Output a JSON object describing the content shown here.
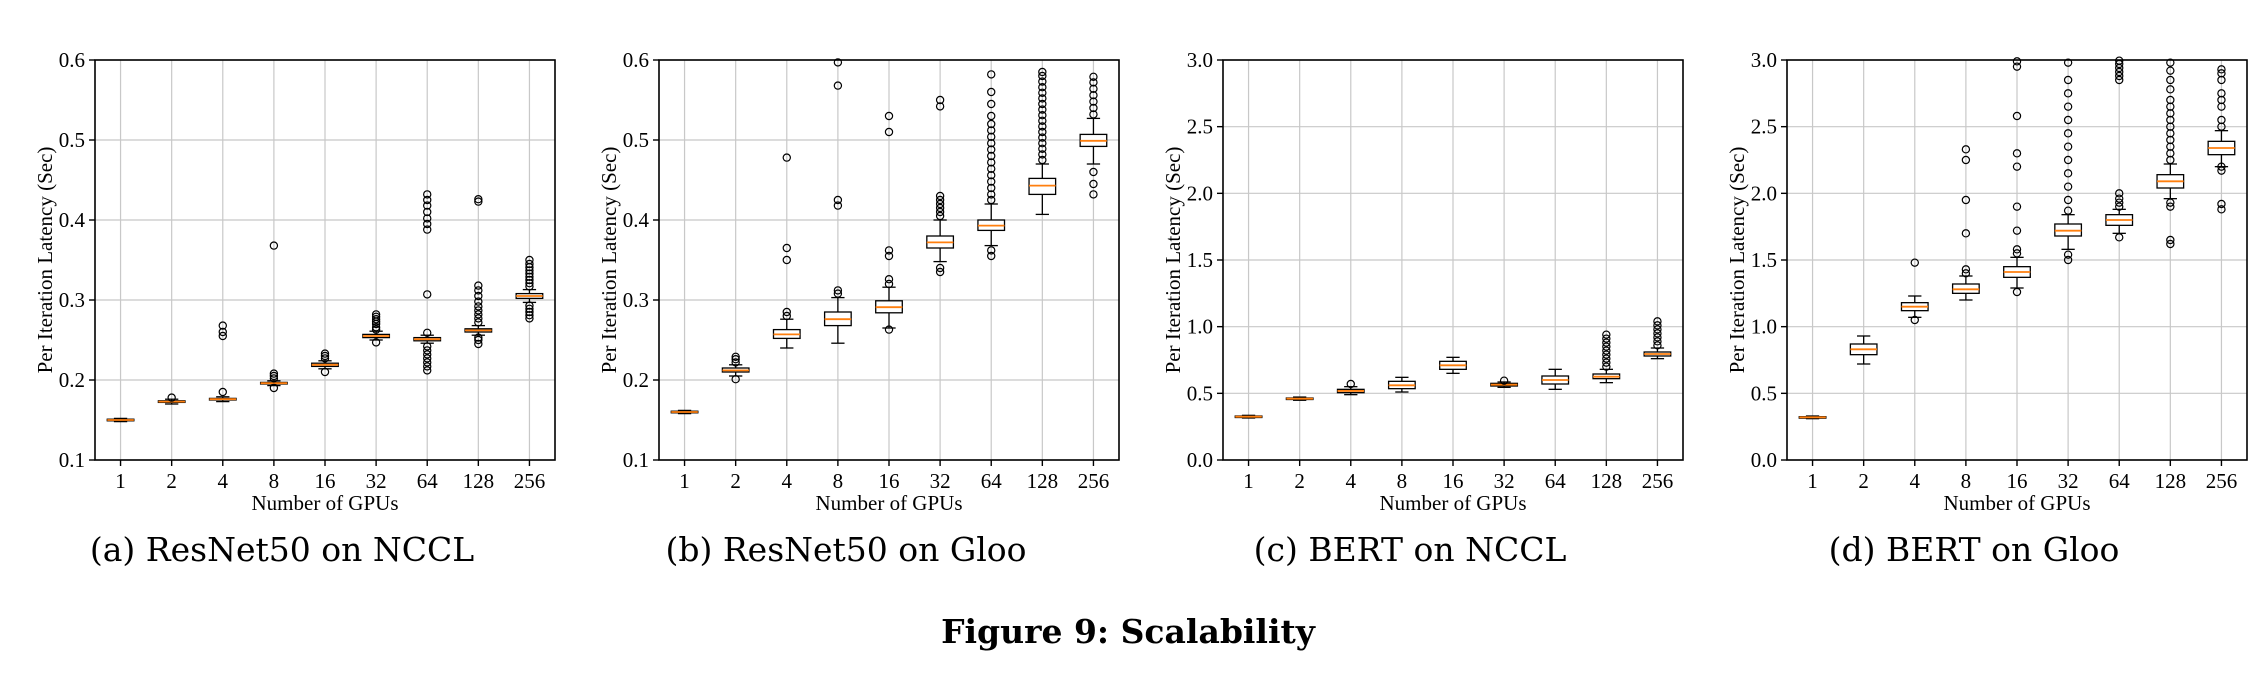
{
  "figure_caption": "Figure 9: Scalability",
  "chart_data": [
    {
      "type": "box",
      "caption": "(a) ResNet50 on NCCL",
      "xlabel": "Number of GPUs",
      "ylabel": "Per Iteration Latency (Sec)",
      "categories": [
        "1",
        "2",
        "4",
        "8",
        "16",
        "32",
        "64",
        "128",
        "256"
      ],
      "ylim": [
        0.1,
        0.6
      ],
      "yticks": [
        "0.1",
        "0.2",
        "0.3",
        "0.4",
        "0.5",
        "0.6"
      ],
      "grid": true,
      "boxes": [
        {
          "q1": 0.149,
          "median": 0.15,
          "q3": 0.151,
          "whisker_low": 0.148,
          "whisker_high": 0.152,
          "outliers": []
        },
        {
          "q1": 0.172,
          "median": 0.173,
          "q3": 0.174,
          "whisker_low": 0.17,
          "whisker_high": 0.176,
          "outliers": [
            0.178
          ]
        },
        {
          "q1": 0.175,
          "median": 0.176,
          "q3": 0.177,
          "whisker_low": 0.173,
          "whisker_high": 0.179,
          "outliers": [
            0.185,
            0.255,
            0.26,
            0.268
          ]
        },
        {
          "q1": 0.195,
          "median": 0.196,
          "q3": 0.197,
          "whisker_low": 0.193,
          "whisker_high": 0.199,
          "outliers": [
            0.19,
            0.202,
            0.205,
            0.208,
            0.368
          ]
        },
        {
          "q1": 0.217,
          "median": 0.219,
          "q3": 0.221,
          "whisker_low": 0.214,
          "whisker_high": 0.224,
          "outliers": [
            0.21,
            0.227,
            0.23,
            0.233
          ]
        },
        {
          "q1": 0.253,
          "median": 0.255,
          "q3": 0.257,
          "whisker_low": 0.25,
          "whisker_high": 0.261,
          "outliers": [
            0.247,
            0.263,
            0.266,
            0.27,
            0.273,
            0.276,
            0.279,
            0.282
          ]
        },
        {
          "q1": 0.249,
          "median": 0.251,
          "q3": 0.253,
          "whisker_low": 0.246,
          "whisker_high": 0.256,
          "outliers": [
            0.212,
            0.217,
            0.222,
            0.227,
            0.232,
            0.237,
            0.242,
            0.259,
            0.307,
            0.388,
            0.395,
            0.402,
            0.41,
            0.418,
            0.425,
            0.432
          ]
        },
        {
          "q1": 0.26,
          "median": 0.262,
          "q3": 0.264,
          "whisker_low": 0.256,
          "whisker_high": 0.268,
          "outliers": [
            0.245,
            0.25,
            0.253,
            0.272,
            0.277,
            0.282,
            0.287,
            0.292,
            0.298,
            0.305,
            0.312,
            0.318,
            0.423,
            0.426
          ]
        },
        {
          "q1": 0.302,
          "median": 0.305,
          "q3": 0.308,
          "whisker_low": 0.297,
          "whisker_high": 0.313,
          "outliers": [
            0.277,
            0.281,
            0.285,
            0.289,
            0.293,
            0.317,
            0.321,
            0.325,
            0.329,
            0.333,
            0.337,
            0.341,
            0.345,
            0.35
          ]
        }
      ]
    },
    {
      "type": "box",
      "caption": "(b) ResNet50 on Gloo",
      "xlabel": "Number of GPUs",
      "ylabel": "Per Iteration Latency (Sec)",
      "categories": [
        "1",
        "2",
        "4",
        "8",
        "16",
        "32",
        "64",
        "128",
        "256"
      ],
      "ylim": [
        0.1,
        0.6
      ],
      "yticks": [
        "0.1",
        "0.2",
        "0.3",
        "0.4",
        "0.5",
        "0.6"
      ],
      "grid": true,
      "boxes": [
        {
          "q1": 0.159,
          "median": 0.16,
          "q3": 0.161,
          "whisker_low": 0.158,
          "whisker_high": 0.162,
          "outliers": []
        },
        {
          "q1": 0.21,
          "median": 0.212,
          "q3": 0.215,
          "whisker_low": 0.205,
          "whisker_high": 0.219,
          "outliers": [
            0.201,
            0.222,
            0.226,
            0.229
          ]
        },
        {
          "q1": 0.252,
          "median": 0.257,
          "q3": 0.263,
          "whisker_low": 0.24,
          "whisker_high": 0.276,
          "outliers": [
            0.28,
            0.285,
            0.35,
            0.365,
            0.478
          ]
        },
        {
          "q1": 0.268,
          "median": 0.276,
          "q3": 0.285,
          "whisker_low": 0.246,
          "whisker_high": 0.303,
          "outliers": [
            0.308,
            0.312,
            0.418,
            0.425,
            0.568,
            0.597
          ]
        },
        {
          "q1": 0.284,
          "median": 0.291,
          "q3": 0.299,
          "whisker_low": 0.265,
          "whisker_high": 0.316,
          "outliers": [
            0.263,
            0.32,
            0.326,
            0.355,
            0.362,
            0.51,
            0.53
          ]
        },
        {
          "q1": 0.365,
          "median": 0.372,
          "q3": 0.38,
          "whisker_low": 0.348,
          "whisker_high": 0.4,
          "outliers": [
            0.335,
            0.34,
            0.405,
            0.41,
            0.415,
            0.42,
            0.425,
            0.43,
            0.542,
            0.55
          ]
        },
        {
          "q1": 0.387,
          "median": 0.393,
          "q3": 0.4,
          "whisker_low": 0.368,
          "whisker_high": 0.42,
          "outliers": [
            0.355,
            0.362,
            0.425,
            0.432,
            0.44,
            0.448,
            0.456,
            0.464,
            0.472,
            0.48,
            0.488,
            0.496,
            0.504,
            0.512,
            0.52,
            0.53,
            0.545,
            0.56,
            0.582
          ]
        },
        {
          "q1": 0.432,
          "median": 0.443,
          "q3": 0.452,
          "whisker_low": 0.407,
          "whisker_high": 0.47,
          "outliers": [
            0.475,
            0.482,
            0.489,
            0.496,
            0.503,
            0.51,
            0.517,
            0.524,
            0.531,
            0.538,
            0.545,
            0.552,
            0.559,
            0.566,
            0.573,
            0.58,
            0.585
          ]
        },
        {
          "q1": 0.492,
          "median": 0.499,
          "q3": 0.507,
          "whisker_low": 0.47,
          "whisker_high": 0.527,
          "outliers": [
            0.432,
            0.445,
            0.46,
            0.532,
            0.54,
            0.548,
            0.556,
            0.564,
            0.572,
            0.579
          ]
        }
      ]
    },
    {
      "type": "box",
      "caption": "(c) BERT on NCCL",
      "xlabel": "Number of GPUs",
      "ylabel": "Per Iteration Latency (Sec)",
      "categories": [
        "1",
        "2",
        "4",
        "8",
        "16",
        "32",
        "64",
        "128",
        "256"
      ],
      "ylim": [
        0.0,
        3.0
      ],
      "yticks": [
        "0.0",
        "0.5",
        "1.0",
        "1.5",
        "2.0",
        "2.5",
        "3.0"
      ],
      "grid": true,
      "boxes": [
        {
          "q1": 0.32,
          "median": 0.325,
          "q3": 0.33,
          "whisker_low": 0.315,
          "whisker_high": 0.335,
          "outliers": []
        },
        {
          "q1": 0.455,
          "median": 0.46,
          "q3": 0.465,
          "whisker_low": 0.448,
          "whisker_high": 0.472,
          "outliers": []
        },
        {
          "q1": 0.505,
          "median": 0.518,
          "q3": 0.53,
          "whisker_low": 0.49,
          "whisker_high": 0.55,
          "outliers": [
            0.57
          ]
        },
        {
          "q1": 0.535,
          "median": 0.56,
          "q3": 0.59,
          "whisker_low": 0.51,
          "whisker_high": 0.62,
          "outliers": []
        },
        {
          "q1": 0.68,
          "median": 0.71,
          "q3": 0.74,
          "whisker_low": 0.65,
          "whisker_high": 0.77,
          "outliers": []
        },
        {
          "q1": 0.555,
          "median": 0.565,
          "q3": 0.575,
          "whisker_low": 0.545,
          "whisker_high": 0.585,
          "outliers": [
            0.595
          ]
        },
        {
          "q1": 0.57,
          "median": 0.6,
          "q3": 0.63,
          "whisker_low": 0.53,
          "whisker_high": 0.68,
          "outliers": []
        },
        {
          "q1": 0.61,
          "median": 0.625,
          "q3": 0.645,
          "whisker_low": 0.58,
          "whisker_high": 0.68,
          "outliers": [
            0.7,
            0.73,
            0.76,
            0.79,
            0.82,
            0.85,
            0.88,
            0.91,
            0.94
          ]
        },
        {
          "q1": 0.78,
          "median": 0.795,
          "q3": 0.81,
          "whisker_low": 0.76,
          "whisker_high": 0.84,
          "outliers": [
            0.86,
            0.89,
            0.92,
            0.95,
            0.98,
            1.01,
            1.04
          ]
        }
      ]
    },
    {
      "type": "box",
      "caption": "(d) BERT on Gloo",
      "xlabel": "Number of GPUs",
      "ylabel": "Per Iteration Latency (Sec)",
      "categories": [
        "1",
        "2",
        "4",
        "8",
        "16",
        "32",
        "64",
        "128",
        "256"
      ],
      "ylim": [
        0.0,
        3.0
      ],
      "yticks": [
        "0.0",
        "0.5",
        "1.0",
        "1.5",
        "2.0",
        "2.5",
        "3.0"
      ],
      "grid": true,
      "boxes": [
        {
          "q1": 0.315,
          "median": 0.32,
          "q3": 0.325,
          "whisker_low": 0.31,
          "whisker_high": 0.33,
          "outliers": []
        },
        {
          "q1": 0.79,
          "median": 0.83,
          "q3": 0.87,
          "whisker_low": 0.72,
          "whisker_high": 0.93,
          "outliers": []
        },
        {
          "q1": 1.12,
          "median": 1.15,
          "q3": 1.18,
          "whisker_low": 1.07,
          "whisker_high": 1.23,
          "outliers": [
            1.05,
            1.48
          ]
        },
        {
          "q1": 1.25,
          "median": 1.28,
          "q3": 1.32,
          "whisker_low": 1.2,
          "whisker_high": 1.38,
          "outliers": [
            1.4,
            1.43,
            1.7,
            1.95,
            2.25,
            2.33
          ]
        },
        {
          "q1": 1.37,
          "median": 1.41,
          "q3": 1.45,
          "whisker_low": 1.29,
          "whisker_high": 1.52,
          "outliers": [
            1.26,
            1.55,
            1.58,
            1.72,
            1.9,
            2.2,
            2.3,
            2.58,
            2.95,
            2.99
          ]
        },
        {
          "q1": 1.68,
          "median": 1.72,
          "q3": 1.77,
          "whisker_low": 1.58,
          "whisker_high": 1.84,
          "outliers": [
            1.5,
            1.54,
            1.87,
            1.95,
            2.05,
            2.15,
            2.25,
            2.35,
            2.45,
            2.55,
            2.65,
            2.75,
            2.85,
            2.98
          ]
        },
        {
          "q1": 1.76,
          "median": 1.8,
          "q3": 1.84,
          "whisker_low": 1.7,
          "whisker_high": 1.88,
          "outliers": [
            1.67,
            1.9,
            1.93,
            1.96,
            2.0,
            2.85,
            2.88,
            2.91,
            2.94,
            2.97,
            2.995
          ]
        },
        {
          "q1": 2.04,
          "median": 2.09,
          "q3": 2.14,
          "whisker_low": 1.96,
          "whisker_high": 2.22,
          "outliers": [
            1.62,
            1.65,
            1.9,
            1.93,
            2.25,
            2.3,
            2.35,
            2.4,
            2.45,
            2.5,
            2.55,
            2.6,
            2.65,
            2.7,
            2.78,
            2.85,
            2.92,
            2.98
          ]
        },
        {
          "q1": 2.29,
          "median": 2.34,
          "q3": 2.39,
          "whisker_low": 2.2,
          "whisker_high": 2.47,
          "outliers": [
            1.88,
            1.92,
            2.17,
            2.2,
            2.5,
            2.55,
            2.65,
            2.7,
            2.75,
            2.85,
            2.9,
            2.93
          ]
        }
      ]
    }
  ]
}
